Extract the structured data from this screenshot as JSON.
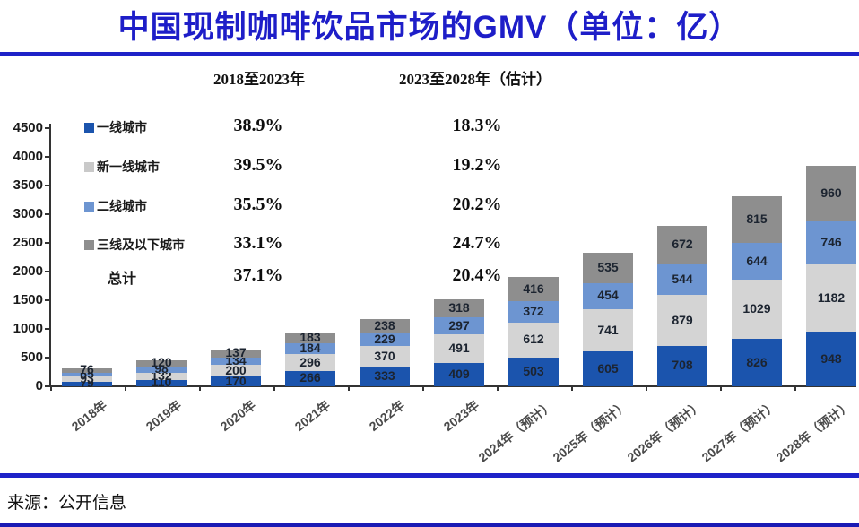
{
  "title": "中国现制咖啡饮品市场的GMV（单位：亿）",
  "source": "来源：公开信息",
  "accent_color": "#1e22c8",
  "cagr_table": {
    "period1_header": "2018至2023年",
    "period2_header": "2023至2028年（估计）",
    "rows": [
      {
        "label": "一线城市",
        "marker_color": "#1b54ad",
        "period1": "38.9%",
        "period2": "18.3%"
      },
      {
        "label": "新一线城市",
        "marker_color": "#c9c9c9",
        "period1": "39.5%",
        "period2": "19.2%"
      },
      {
        "label": "二线城市",
        "marker_color": "#6d95d1",
        "period1": "35.5%",
        "period2": "20.2%"
      },
      {
        "label": "三线及以下城市",
        "marker_color": "#8e8e8e",
        "period1": "33.1%",
        "period2": "24.7%"
      },
      {
        "label": "总计",
        "marker_color": null,
        "period1": "37.1%",
        "period2": "20.4%"
      }
    ]
  },
  "chart_data": {
    "type": "bar",
    "stacked": true,
    "title": "中国现制咖啡饮品市场的GMV（单位：亿）",
    "unit": "亿",
    "categories": [
      "2018年",
      "2019年",
      "2020年",
      "2021年",
      "2022年",
      "2023年",
      "2024年（预计）",
      "2025年（预计）",
      "2026年（预计）",
      "2027年（预计）",
      "2028年（预计）"
    ],
    "series": [
      {
        "name": "一线城市",
        "color": "#1b54ad",
        "values": [
          79,
          110,
          170,
          266,
          333,
          409,
          503,
          605,
          708,
          826,
          948
        ]
      },
      {
        "name": "新一线城市",
        "color": "#d4d4d4",
        "values": [
          93,
          132,
          200,
          296,
          370,
          491,
          612,
          741,
          879,
          1029,
          1182
        ]
      },
      {
        "name": "二线城市",
        "color": "#6d95d1",
        "values": [
          65,
          98,
          134,
          184,
          229,
          297,
          372,
          454,
          544,
          644,
          746
        ]
      },
      {
        "name": "三线及以下城市",
        "color": "#8e8e8e",
        "values": [
          76,
          120,
          137,
          183,
          238,
          318,
          416,
          535,
          672,
          815,
          960
        ]
      }
    ],
    "ylim": [
      0,
      4500
    ],
    "ytick_step": 500,
    "grid": false,
    "legend_position": "upper-left",
    "value_labels": true
  }
}
